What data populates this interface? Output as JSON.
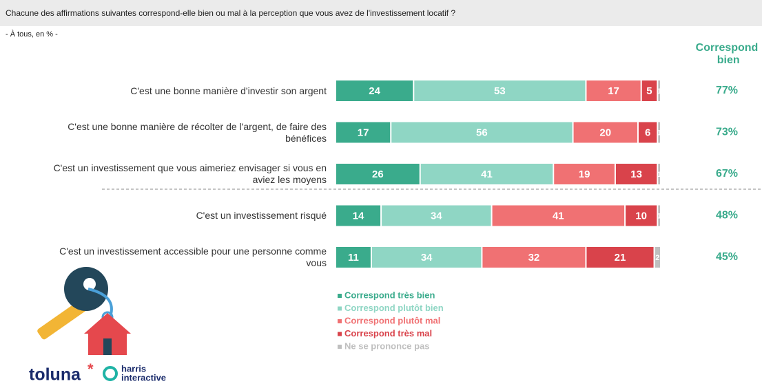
{
  "chart_data": {
    "type": "stacked-bar-horizontal",
    "title": "Chacune des affirmations suivantes correspond-elle bien ou mal à la perception que vous avez de l'investissement locatif ?",
    "subtitle": "- À tous, en % -",
    "categories": [
      "C'est une bonne manière d'investir son argent",
      "C'est une bonne manière de récolter de l'argent, de faire des bénéfices",
      "C'est un investissement que vous aimeriez envisager si vous en aviez les moyens",
      "C'est un investissement risqué",
      "C'est un investissement accessible pour une personne comme vous"
    ],
    "xlim": [
      0,
      100
    ],
    "series": [
      {
        "name": "Correspond très bien",
        "color": "#3aab8c",
        "values": [
          24,
          17,
          26,
          14,
          11
        ]
      },
      {
        "name": "Correspond plutôt bien",
        "color": "#8fd6c4",
        "values": [
          53,
          56,
          41,
          34,
          34
        ]
      },
      {
        "name": "Correspond plutôt mal",
        "color": "#f07173",
        "values": [
          17,
          20,
          19,
          41,
          32
        ]
      },
      {
        "name": "Correspond très mal",
        "color": "#d9434b",
        "values": [
          5,
          6,
          13,
          10,
          21
        ]
      },
      {
        "name": "Ne se prononce pas",
        "color": "#bfbfbf",
        "values": [
          1,
          1,
          1,
          1,
          2
        ]
      }
    ],
    "net": {
      "title": "Correspond bien",
      "color": "#3aab8c",
      "values": [
        77,
        73,
        67,
        48,
        45
      ],
      "value_labels": [
        "77%",
        "73%",
        "67%",
        "48%",
        "45%"
      ]
    },
    "brand": {
      "name": "toluna",
      "partner": "harris",
      "partner_sub": "interactive"
    }
  }
}
